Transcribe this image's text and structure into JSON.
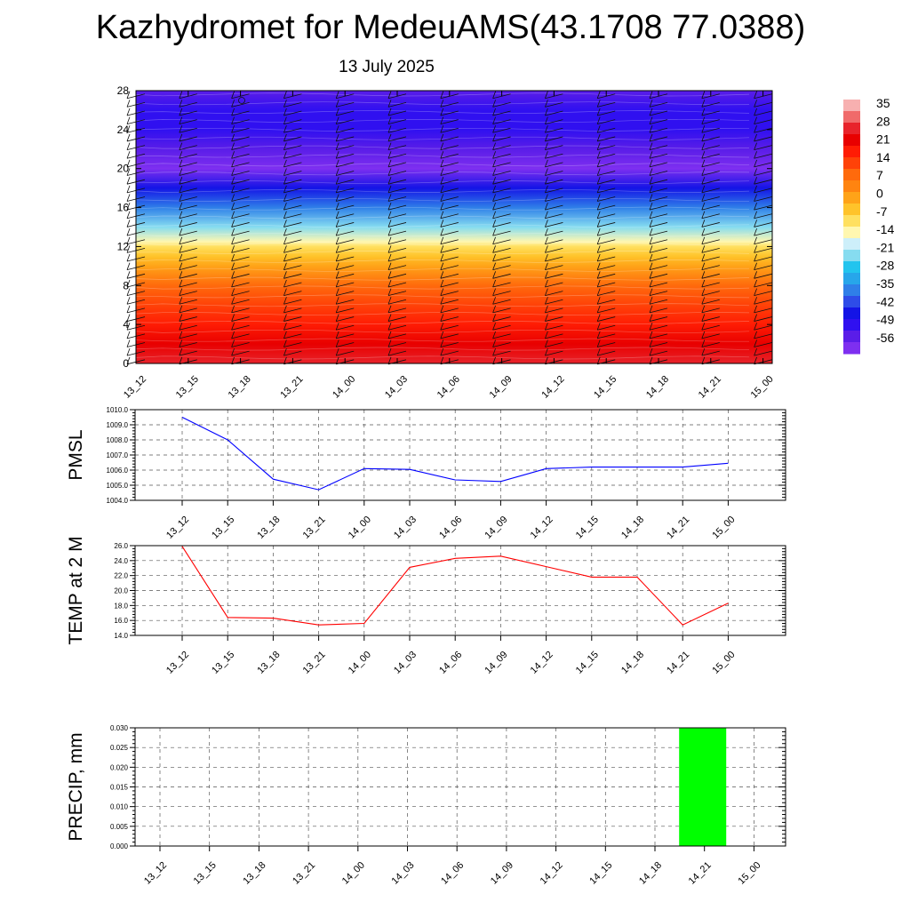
{
  "header": {
    "title": "Kazhydromet for MedeuAMS(43.1708 77.0388)",
    "date": "13 July 2025"
  },
  "chart_data": [
    {
      "type": "heatmap",
      "title": "",
      "x_ticks": [
        "13_12",
        "13_15",
        "13_18",
        "13_21",
        "14_00",
        "14_03",
        "14_06",
        "14_09",
        "14_12",
        "14_15",
        "14_18",
        "14_21",
        "15_00"
      ],
      "y_ticks": [
        "0",
        "4",
        "8",
        "12",
        "16",
        "20",
        "24",
        "28"
      ],
      "ylim": [
        0,
        28
      ],
      "color_scale": {
        "labels": [
          "35",
          "28",
          "21",
          "14",
          "7",
          "0",
          "-7",
          "-14",
          "-21",
          "-28",
          "-35",
          "-42",
          "-49",
          "-56"
        ],
        "range": [
          -59,
          37
        ]
      },
      "temperature_profile": {
        "height": [
          0,
          2,
          4,
          6,
          8,
          10,
          11,
          12,
          12.5,
          14,
          16,
          18,
          20,
          22,
          24,
          26,
          28
        ],
        "value": [
          25,
          21,
          16,
          12,
          8,
          2,
          -3,
          -8,
          -13,
          -22,
          -33,
          -44,
          -57,
          -53,
          -50,
          -50,
          -52
        ]
      },
      "wind_barbs": true
    },
    {
      "type": "line",
      "ylabel": "PMSL",
      "x": [
        "13_12",
        "13_15",
        "13_18",
        "13_21",
        "14_00",
        "14_03",
        "14_06",
        "14_09",
        "14_12",
        "14_15",
        "14_18",
        "14_21",
        "15_00"
      ],
      "ylim": [
        1004.0,
        1010.0
      ],
      "y_ticks": [
        "1004.0",
        "1005.0",
        "1006.0",
        "1007.0",
        "1008.0",
        "1009.0",
        "1010.0"
      ],
      "series": [
        {
          "color": "#0000ff",
          "values": [
            1009.5,
            1008.0,
            1005.4,
            1004.7,
            1006.1,
            1006.05,
            1005.35,
            1005.25,
            1006.1,
            1006.2,
            1006.2,
            1006.2,
            1006.45
          ]
        }
      ]
    },
    {
      "type": "line",
      "ylabel": "TEMP at 2 M",
      "x": [
        "13_12",
        "13_15",
        "13_18",
        "13_21",
        "14_00",
        "14_03",
        "14_06",
        "14_09",
        "14_12",
        "14_15",
        "14_18",
        "14_21",
        "15_00"
      ],
      "ylim": [
        14.0,
        26.0
      ],
      "y_ticks": [
        "14.0",
        "16.0",
        "18.0",
        "20.0",
        "22.0",
        "24.0",
        "26.0"
      ],
      "series": [
        {
          "color": "#ff0000",
          "values": [
            25.9,
            16.4,
            16.3,
            15.4,
            15.6,
            23.1,
            24.3,
            24.6,
            23.2,
            21.8,
            21.8,
            15.4,
            18.3
          ]
        }
      ]
    },
    {
      "type": "bar",
      "ylabel": "PRECIP, mm",
      "categories": [
        "13_12",
        "13_15",
        "13_18",
        "13_21",
        "14_00",
        "14_03",
        "14_06",
        "14_09",
        "14_12",
        "14_15",
        "14_18",
        "14_21",
        "15_00"
      ],
      "ylim": [
        0,
        0.03
      ],
      "y_ticks": [
        "0.000",
        "0.005",
        "0.010",
        "0.015",
        "0.020",
        "0.025",
        "0.030"
      ],
      "series": [
        {
          "color": "#00ff00",
          "values": [
            0,
            0,
            0,
            0,
            0,
            0,
            0,
            0,
            0,
            0,
            0,
            0.03,
            0
          ]
        }
      ]
    }
  ]
}
